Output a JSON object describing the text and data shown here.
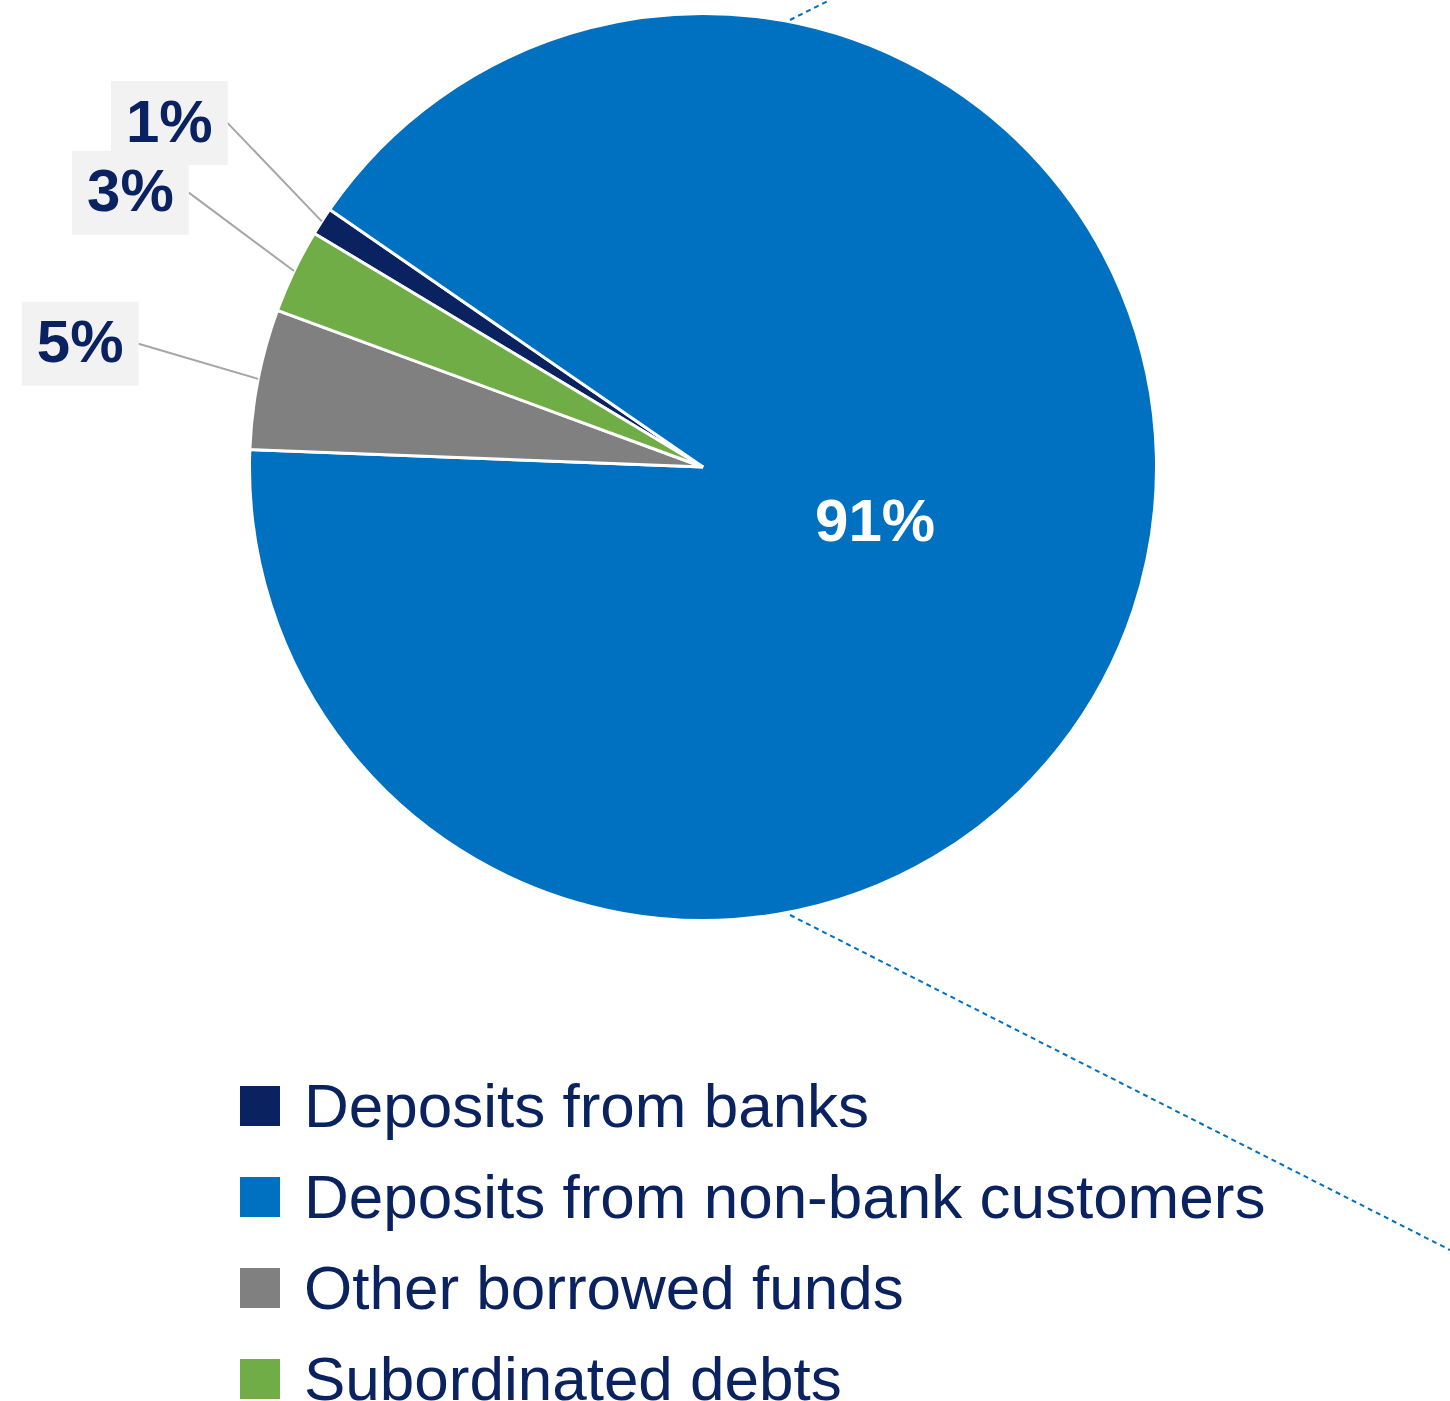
{
  "chart_data": {
    "type": "pie",
    "categories": [
      "Deposits from banks",
      "Deposits from non-bank customers",
      "Other borrowed funds",
      "Subordinated debts"
    ],
    "values": [
      1,
      91,
      5,
      3
    ],
    "colors": [
      "#0b2260",
      "#0070c0",
      "#808080",
      "#70ad47"
    ],
    "value_labels": [
      "1%",
      "91%",
      "5%",
      "3%"
    ],
    "legend": "bottom"
  }
}
